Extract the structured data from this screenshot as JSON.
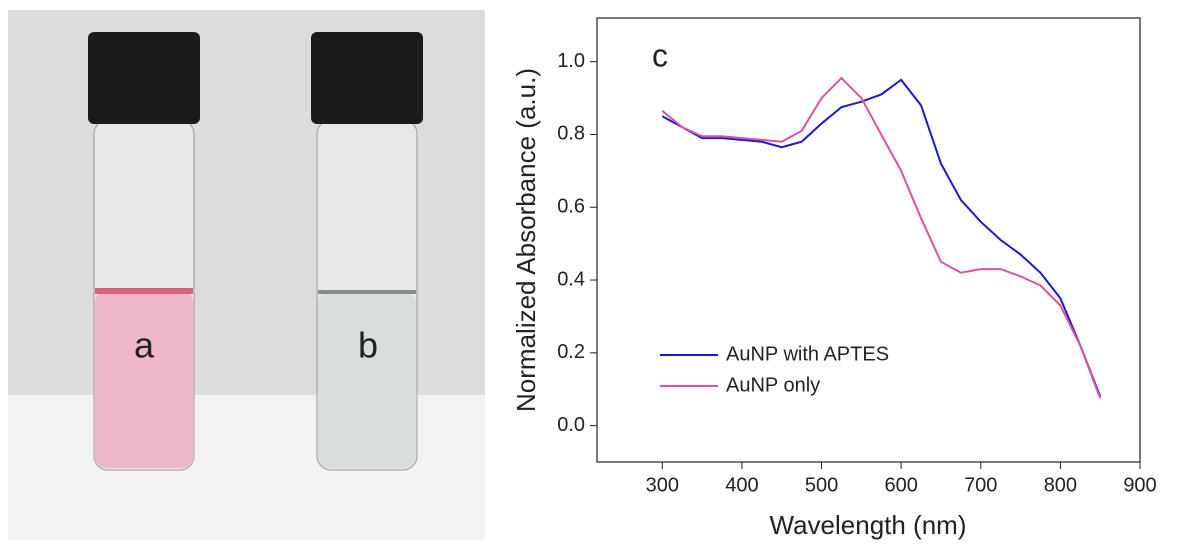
{
  "photo": {
    "labels": [
      "a",
      "b"
    ]
  },
  "chart_data": {
    "type": "line",
    "annotation": "c",
    "x_label": "Wavelength (nm)",
    "y_label": "Normalized Absorbance (a.u.)",
    "x": [
      300,
      325,
      350,
      375,
      400,
      425,
      450,
      475,
      500,
      525,
      550,
      575,
      600,
      625,
      650,
      675,
      700,
      725,
      750,
      775,
      800,
      825,
      850
    ],
    "series": [
      {
        "name": "AuNP with APTES",
        "color": "#1a1ac8",
        "values": [
          0.85,
          0.82,
          0.79,
          0.79,
          0.785,
          0.78,
          0.765,
          0.78,
          0.83,
          0.875,
          0.89,
          0.91,
          0.95,
          0.88,
          0.72,
          0.62,
          0.56,
          0.51,
          0.47,
          0.42,
          0.35,
          0.22,
          0.08
        ]
      },
      {
        "name": "AuNP only",
        "color": "#e0509f",
        "values": [
          0.865,
          0.82,
          0.795,
          0.795,
          0.79,
          0.785,
          0.78,
          0.81,
          0.9,
          0.955,
          0.9,
          0.8,
          0.7,
          0.57,
          0.45,
          0.42,
          0.43,
          0.43,
          0.41,
          0.385,
          0.33,
          0.22,
          0.075
        ]
      }
    ],
    "xlim": [
      218,
      900
    ],
    "ylim": [
      -0.1,
      1.12
    ],
    "xticks": [
      300,
      400,
      500,
      600,
      700,
      800,
      900
    ],
    "yticks": [
      {
        "value": 0,
        "label": "0.0"
      },
      0.2,
      0.4,
      0.6,
      0.8,
      {
        "value": 1,
        "label": "1.0"
      }
    ],
    "legend": "lower left"
  }
}
